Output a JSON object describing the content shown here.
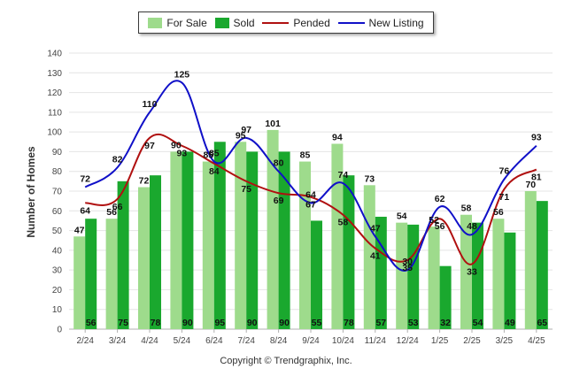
{
  "chart_data": {
    "type": "bar",
    "title": "",
    "ylabel": "Number of Homes",
    "xlabel": "",
    "ylim": [
      0,
      140
    ],
    "yticks": [
      0,
      10,
      20,
      30,
      40,
      50,
      60,
      70,
      80,
      90,
      100,
      110,
      120,
      130,
      140
    ],
    "grid": true,
    "legend_position": "top-center",
    "categories": [
      "2/24",
      "3/24",
      "4/24",
      "5/24",
      "6/24",
      "7/24",
      "8/24",
      "9/24",
      "10/24",
      "11/24",
      "12/24",
      "1/25",
      "2/25",
      "3/25",
      "4/25"
    ],
    "series": [
      {
        "name": "For Sale",
        "kind": "bar",
        "color": "#9edb8c",
        "values": [
          47,
          56,
          72,
          90,
          85,
          95,
          101,
          85,
          94,
          73,
          54,
          52,
          58,
          56,
          70
        ]
      },
      {
        "name": "Sold",
        "kind": "bar",
        "color": "#1aa82e",
        "values": [
          56,
          75,
          78,
          90,
          95,
          90,
          90,
          55,
          78,
          57,
          53,
          32,
          54,
          49,
          65
        ]
      },
      {
        "name": "Pended",
        "kind": "line",
        "color": "#b01010",
        "values": [
          64,
          66,
          97,
          93,
          84,
          75,
          69,
          67,
          58,
          41,
          35,
          56,
          33,
          71,
          81
        ]
      },
      {
        "name": "New Listing",
        "kind": "line",
        "color": "#1010c8",
        "values": [
          72,
          82,
          110,
          125,
          85,
          97,
          80,
          64,
          74,
          47,
          30,
          62,
          48,
          76,
          93
        ]
      }
    ]
  },
  "footer": "Copyright © Trendgraphix, Inc."
}
